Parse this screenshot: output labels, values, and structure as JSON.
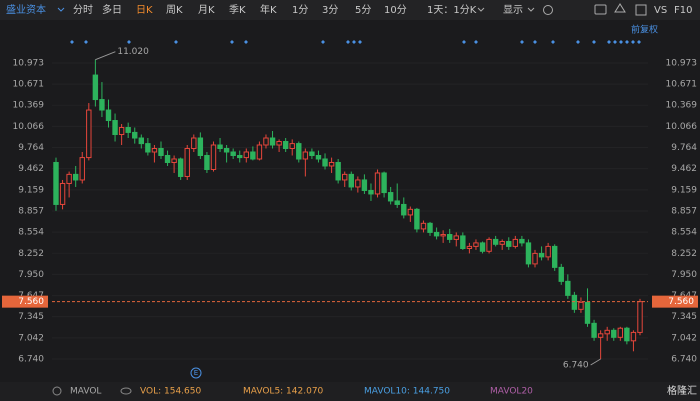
{
  "toolbar": {
    "stock": "盛业资本",
    "tabs": [
      "分时",
      "多日",
      "日K",
      "周K",
      "月K",
      "季K",
      "年K",
      "1分",
      "3分",
      "5分",
      "10分"
    ],
    "active_tab": 2,
    "period": "1天：1分K",
    "display": "显示",
    "vs": "VS",
    "f10": "F10"
  },
  "adjust": "前复权",
  "indicator": {
    "name": "MAVOL",
    "vol": "VOL: 154.650",
    "mavol5": "MAVOL5: 142.070",
    "mavol10": "MAVOL10: 144.750",
    "mavol20": "MAVOL20"
  },
  "event_marker": "E",
  "watermark": "格隆汇",
  "chart_data": {
    "type": "candlestick",
    "up_color": "#e5463b",
    "down_color": "#2db35d",
    "open": [
      9.55,
      8.95,
      9.25,
      9.38,
      9.3,
      9.62,
      10.8,
      10.45,
      10.3,
      10.15,
      9.95,
      10.05,
      9.98,
      9.9,
      9.82,
      9.7,
      9.75,
      9.65,
      9.55,
      9.6,
      9.35,
      9.75,
      9.9,
      9.65,
      9.45,
      9.8,
      9.75,
      9.7,
      9.65,
      9.62,
      9.7,
      9.6,
      9.8,
      9.9,
      9.8,
      9.85,
      9.75,
      9.82,
      9.6,
      9.7,
      9.65,
      9.6,
      9.5,
      9.55,
      9.3,
      9.38,
      9.2,
      9.3,
      9.15,
      9.1,
      9.4,
      9.12,
      9.0,
      8.95,
      8.8,
      8.88,
      8.6,
      8.68,
      8.55,
      8.5,
      8.52,
      8.45,
      8.5,
      8.32,
      8.35,
      8.4,
      8.28,
      8.45,
      8.38,
      8.42,
      8.35,
      8.45,
      8.4,
      8.1,
      8.25,
      8.2,
      8.35,
      8.05,
      7.85,
      7.65,
      7.45,
      7.55,
      7.25,
      7.05,
      7.1,
      7.15,
      7.05,
      7.18,
      7.0,
      7.12
    ],
    "high": [
      9.62,
      9.3,
      9.42,
      9.5,
      9.7,
      10.4,
      11.02,
      10.7,
      10.45,
      10.25,
      10.1,
      10.12,
      10.05,
      9.95,
      9.9,
      9.8,
      9.85,
      9.72,
      9.65,
      9.62,
      9.8,
      9.95,
      9.98,
      9.7,
      9.85,
      9.9,
      9.8,
      9.75,
      9.72,
      9.75,
      9.78,
      9.85,
      9.95,
      10.0,
      9.88,
      9.9,
      9.88,
      9.85,
      9.75,
      9.75,
      9.72,
      9.68,
      9.62,
      9.6,
      9.42,
      9.42,
      9.35,
      9.38,
      9.25,
      9.45,
      9.42,
      9.2,
      9.25,
      9.05,
      8.92,
      8.9,
      8.72,
      8.7,
      8.62,
      8.58,
      8.6,
      8.55,
      8.55,
      8.4,
      8.45,
      8.42,
      8.48,
      8.5,
      8.45,
      8.48,
      8.5,
      8.5,
      8.45,
      8.3,
      8.35,
      8.4,
      8.38,
      8.1,
      7.95,
      7.7,
      7.62,
      7.75,
      7.3,
      7.15,
      7.2,
      7.18,
      7.2,
      7.2,
      7.15,
      7.6
    ],
    "low": [
      8.86,
      8.88,
      9.05,
      9.2,
      9.25,
      9.58,
      10.35,
      10.2,
      10.05,
      9.85,
      9.8,
      9.9,
      9.82,
      9.75,
      9.65,
      9.55,
      9.6,
      9.5,
      9.4,
      9.3,
      9.3,
      9.7,
      9.6,
      9.4,
      9.42,
      9.7,
      9.55,
      9.6,
      9.55,
      9.55,
      9.58,
      9.58,
      9.75,
      9.75,
      9.7,
      9.7,
      9.65,
      9.55,
      9.35,
      9.6,
      9.55,
      9.45,
      9.4,
      9.25,
      9.2,
      9.15,
      9.12,
      9.1,
      9.0,
      9.05,
      9.05,
      8.95,
      8.9,
      8.75,
      8.7,
      8.55,
      8.55,
      8.5,
      8.45,
      8.4,
      8.4,
      8.35,
      8.3,
      8.25,
      8.3,
      8.25,
      8.25,
      8.35,
      8.3,
      8.3,
      8.32,
      8.35,
      8.05,
      8.05,
      8.15,
      8.15,
      8.0,
      7.8,
      7.6,
      7.4,
      7.4,
      7.2,
      7.0,
      6.74,
      7.0,
      7.0,
      7.0,
      6.95,
      6.85,
      7.08
    ],
    "close": [
      8.95,
      9.25,
      9.38,
      9.3,
      9.62,
      10.3,
      10.45,
      10.3,
      10.15,
      9.95,
      10.05,
      9.98,
      9.9,
      9.82,
      9.7,
      9.75,
      9.65,
      9.55,
      9.6,
      9.35,
      9.75,
      9.9,
      9.65,
      9.45,
      9.8,
      9.75,
      9.7,
      9.65,
      9.62,
      9.7,
      9.6,
      9.8,
      9.9,
      9.8,
      9.85,
      9.75,
      9.82,
      9.6,
      9.7,
      9.65,
      9.6,
      9.5,
      9.55,
      9.3,
      9.38,
      9.2,
      9.3,
      9.15,
      9.1,
      9.4,
      9.12,
      9.0,
      8.95,
      8.8,
      8.88,
      8.6,
      8.68,
      8.55,
      8.5,
      8.52,
      8.45,
      8.5,
      8.32,
      8.35,
      8.4,
      8.28,
      8.45,
      8.38,
      8.42,
      8.35,
      8.45,
      8.4,
      8.1,
      8.25,
      8.2,
      8.35,
      8.05,
      7.85,
      7.65,
      7.45,
      7.55,
      7.25,
      7.05,
      7.1,
      7.15,
      7.05,
      7.18,
      7.0,
      7.12,
      7.56
    ],
    "ylim": [
      6.554,
      11.23
    ],
    "yticks": [
      10.973,
      10.671,
      10.369,
      10.066,
      9.764,
      9.462,
      9.159,
      8.857,
      8.554,
      8.252,
      {
        "value": 7.95,
        "label": "7.950"
      },
      7.647,
      7.345,
      7.042,
      {
        "value": 6.74,
        "label": "6.740"
      }
    ],
    "grid": true,
    "current_price": {
      "value": 7.56,
      "label": "7.560"
    },
    "max_label": {
      "value": 11.02,
      "label": "11.020"
    },
    "min_label": {
      "value": 6.74,
      "label": "6.740"
    }
  }
}
